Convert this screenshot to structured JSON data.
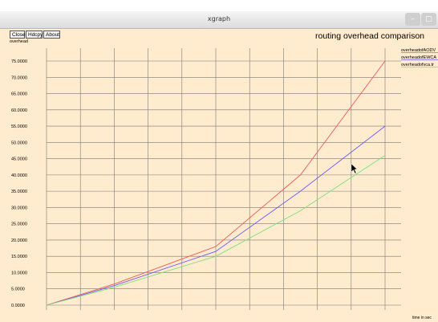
{
  "window": {
    "title": "xgraph"
  },
  "toolbar": {
    "close_label": "Close",
    "hdcpy_label": "Hdcpy",
    "about_label": "About"
  },
  "colors": {
    "background": "#ffebcd",
    "grid": "#7a7a7a"
  },
  "chart_data": {
    "type": "line",
    "title": "routing overhead comparison",
    "ylabel": "overhead",
    "xlabel": "time in sec",
    "x": [
      0,
      50,
      100,
      150,
      200,
      250
    ],
    "ylim": [
      0,
      75
    ],
    "yticks": [
      0,
      5,
      10,
      15,
      20,
      25,
      30,
      35,
      40,
      45,
      50,
      55,
      60,
      65,
      70,
      75
    ],
    "ytick_labels": [
      "0.0000",
      "5.0000",
      "10.0000",
      "15.0000",
      "20.0000",
      "25.0000",
      "30.0000",
      "35.0000",
      "40.0000",
      "45.0000",
      "50.0000",
      "55.0000",
      "60.0000",
      "65.0000",
      "70.0000",
      "75.0000"
    ],
    "xlim": [
      0,
      250
    ],
    "xticks": [
      0,
      25,
      50,
      75,
      100,
      125,
      150,
      175,
      200,
      225,
      250
    ],
    "grid": true,
    "legend_position": "top-right",
    "series": [
      {
        "name": "overheadofAODV",
        "color": "#f05a5a",
        "values": [
          0,
          6.5,
          18,
          40,
          75
        ],
        "x": [
          0,
          50,
          125,
          187.5,
          250
        ]
      },
      {
        "name": "overheadofEWCA",
        "color": "#6b5cf0",
        "values": [
          0,
          6,
          16.5,
          35,
          55
        ],
        "x": [
          0,
          50,
          125,
          187.5,
          250
        ]
      },
      {
        "name": "overheadofvca.tr",
        "color": "#7de07d",
        "values": [
          0,
          5.5,
          15,
          29,
          46
        ],
        "x": [
          0,
          50,
          125,
          187.5,
          250
        ]
      }
    ]
  }
}
